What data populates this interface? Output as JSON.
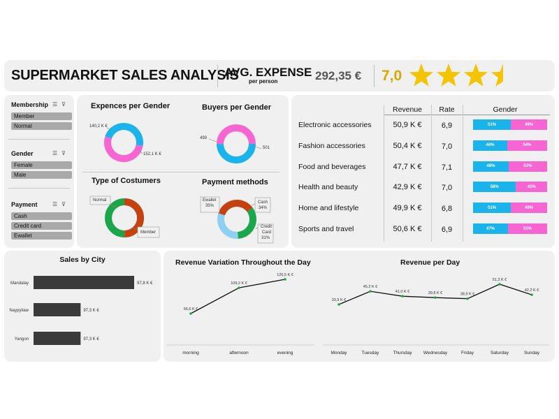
{
  "header": {
    "title": "SUPERMARKET SALES ANALYSIS",
    "avg_label": "AVG. EXPENSE",
    "avg_sub": "per person",
    "avg_value": "292,35 €",
    "rating_value": "7,0",
    "stars": 3.5
  },
  "colors": {
    "blue": "#1ab3eb",
    "pink": "#f765d3",
    "orange": "#c4420f",
    "green": "#1ba64b",
    "lightblue": "#8ecff2",
    "bar": "#3a3a3a"
  },
  "slicers": [
    {
      "title": "Membership",
      "items": [
        "Member",
        "Normal"
      ]
    },
    {
      "title": "Gender",
      "items": [
        "Female",
        "Male"
      ]
    },
    {
      "title": "Payment",
      "items": [
        "Cash",
        "Credit card",
        "Ewallet"
      ]
    }
  ],
  "donuts": {
    "expenses_gender": {
      "title": "Expences per Gender",
      "labels": [
        "140,2 K €",
        "152,1 K €"
      ]
    },
    "buyers_gender": {
      "title": "Buyers per Gender",
      "labels": [
        "499",
        "501"
      ]
    },
    "type_customers": {
      "title": "Type of Costumers",
      "labels": [
        "Normal",
        "Member"
      ]
    },
    "payment": {
      "title": "Payment methods",
      "labels": [
        "Ewallet",
        "35%",
        "Cash",
        "34%",
        "Credit",
        "Card",
        "31%"
      ]
    }
  },
  "table": {
    "headers": [
      "Revenue",
      "Rate",
      "Gender"
    ],
    "rows": [
      {
        "category": "Electronic accessories",
        "revenue": "50,9 K €",
        "rate": "6,9",
        "male": "51%",
        "female": "49%"
      },
      {
        "category": "Fashion accessories",
        "revenue": "50,4 K €",
        "rate": "7,0",
        "male": "46%",
        "female": "54%"
      },
      {
        "category": "Food and beverages",
        "revenue": "47,7 K €",
        "rate": "7,1",
        "male": "48%",
        "female": "52%"
      },
      {
        "category": "Health and beauty",
        "revenue": "42,9 K €",
        "rate": "7,0",
        "male": "58%",
        "female": "42%"
      },
      {
        "category": "Home and lifestyle",
        "revenue": "49,9 K €",
        "rate": "6,8",
        "male": "51%",
        "female": "49%"
      },
      {
        "category": "Sports and travel",
        "revenue": "50,6 K €",
        "rate": "6,9",
        "male": "47%",
        "female": "53%"
      }
    ]
  },
  "chart_data": [
    {
      "type": "pie",
      "title": "Expences per Gender",
      "values": [
        140.2,
        152.1
      ],
      "labels": [
        "140,2 K €",
        "152,1 K €"
      ],
      "colors": [
        "#1ab3eb",
        "#f765d3"
      ]
    },
    {
      "type": "pie",
      "title": "Buyers per Gender",
      "values": [
        499,
        501
      ],
      "labels": [
        "499",
        "501"
      ],
      "colors": [
        "#1ab3eb",
        "#f765d3"
      ]
    },
    {
      "type": "pie",
      "title": "Type of Costumers",
      "categories": [
        "Normal",
        "Member"
      ],
      "values": [
        49.9,
        50.1
      ],
      "colors": [
        "#c4420f",
        "#1ba64b"
      ]
    },
    {
      "type": "pie",
      "title": "Payment methods",
      "categories": [
        "Ewallet",
        "Cash",
        "Credit Card"
      ],
      "values": [
        35,
        34,
        31
      ],
      "colors": [
        "#c4420f",
        "#1ba64b",
        "#8ecff2"
      ]
    },
    {
      "type": "bar",
      "title": "Sales by City",
      "categories": [
        "Mandalay",
        "Naypyitaw",
        "Yangon"
      ],
      "values": [
        97.8,
        97.3,
        97.3
      ],
      "labels": [
        "97,8 K €",
        "97,3 K €",
        "97,3 K €"
      ]
    },
    {
      "type": "line",
      "title": "Revenue Variation Throughout the Day",
      "categories": [
        "morning",
        "afternoon",
        "evening"
      ],
      "values": [
        56.6,
        109.2,
        126.5
      ],
      "labels": [
        "56,6 K €",
        "109,2 K €",
        "126,5 K €"
      ]
    },
    {
      "type": "line",
      "title": "Revenue per Day",
      "categories": [
        "Monday",
        "Tuesday",
        "Thursday",
        "Wednesday",
        "Friday",
        "Saturday",
        "Sunday"
      ],
      "values": [
        33.9,
        45.2,
        41.0,
        39.8,
        38.9,
        51.3,
        42.2
      ],
      "labels": [
        "33,9 K €",
        "45,2 K €",
        "41,0 K €",
        "39,8 K €",
        "38,9 K €",
        "51,3 K €",
        "42,2 K €"
      ]
    }
  ]
}
